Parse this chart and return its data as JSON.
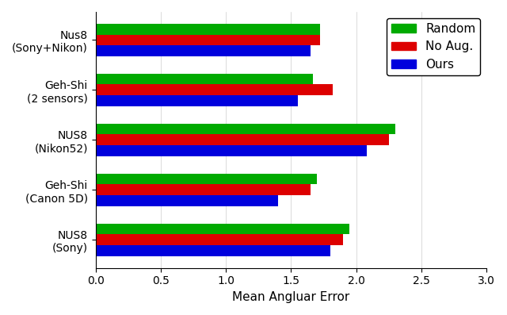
{
  "categories": [
    "Nus8\n(Sony+Nikon)",
    "Geh-Shi\n(2 sensors)",
    "NUS8\n(Nikon52)",
    "Geh-Shi\n(Canon 5D)",
    "NUS8\n(Sony)"
  ],
  "random": [
    1.72,
    1.67,
    2.3,
    1.7,
    1.95
  ],
  "no_aug": [
    1.72,
    1.82,
    2.25,
    1.65,
    1.9
  ],
  "ours": [
    1.65,
    1.55,
    2.08,
    1.4,
    1.8
  ],
  "colors": {
    "random": "#00aa00",
    "no_aug": "#dd0000",
    "ours": "#0000dd"
  },
  "xlabel": "Mean Angluar Error",
  "xlim": [
    0.0,
    3.0
  ],
  "xticks": [
    0.0,
    0.5,
    1.0,
    1.5,
    2.0,
    2.5,
    3.0
  ],
  "legend_labels": [
    "Random",
    "No Aug.",
    "Ours"
  ],
  "bar_height": 0.22,
  "axis_fontsize": 11,
  "tick_fontsize": 10,
  "legend_fontsize": 11,
  "background_color": "#ffffff"
}
